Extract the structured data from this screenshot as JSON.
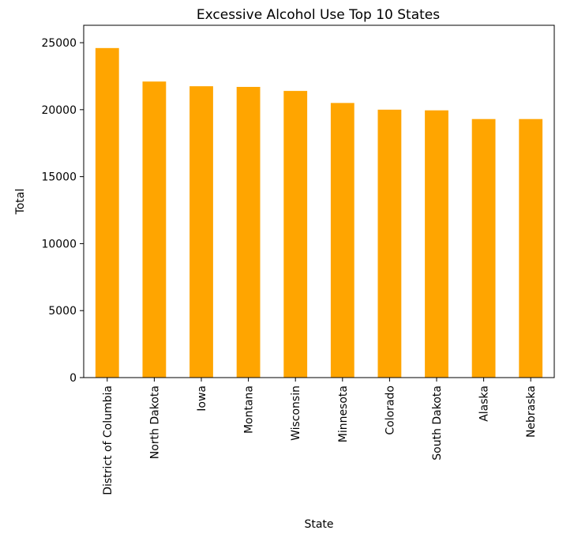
{
  "chart_data": {
    "type": "bar",
    "title": "Excessive Alcohol Use Top 10 States",
    "xlabel": "State",
    "ylabel": "Total",
    "categories": [
      "District of Columbia",
      "North Dakota",
      "Iowa",
      "Montana",
      "Wisconsin",
      "Minnesota",
      "Colorado",
      "South Dakota",
      "Alaska",
      "Nebraska"
    ],
    "values": [
      24600,
      22100,
      21750,
      21700,
      21400,
      20500,
      20000,
      19950,
      19300,
      19300
    ],
    "ylim": [
      0,
      26300
    ],
    "yticks": [
      0,
      5000,
      10000,
      15000,
      20000,
      25000
    ],
    "bar_color": "#ffa500",
    "grid": false
  }
}
